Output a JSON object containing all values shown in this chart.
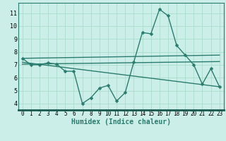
{
  "line1_x": [
    0,
    1,
    2,
    3,
    4,
    5,
    6,
    7,
    8,
    9,
    10,
    11,
    12,
    13,
    14,
    15,
    16,
    17,
    18,
    19,
    20,
    21,
    22,
    23
  ],
  "line1_y": [
    7.5,
    7.0,
    7.0,
    7.15,
    7.05,
    6.5,
    6.5,
    4.0,
    4.45,
    5.2,
    5.4,
    4.2,
    4.85,
    7.2,
    9.5,
    9.4,
    11.3,
    10.8,
    8.5,
    7.75,
    7.0,
    5.5,
    6.7,
    5.3
  ],
  "line2_x": [
    0,
    23
  ],
  "line2_y": [
    7.5,
    7.75
  ],
  "line3_x": [
    0,
    23
  ],
  "line3_y": [
    7.2,
    5.3
  ],
  "line4_x": [
    0,
    23
  ],
  "line4_y": [
    7.05,
    7.25
  ],
  "color": "#2a7d6e",
  "bg_color": "#cceee8",
  "grid_color": "#aaddcc",
  "xlabel": "Humidex (Indice chaleur)",
  "xlim": [
    -0.5,
    23.5
  ],
  "ylim": [
    3.5,
    11.8
  ],
  "yticks": [
    4,
    5,
    6,
    7,
    8,
    9,
    10,
    11
  ],
  "xticks": [
    0,
    1,
    2,
    3,
    4,
    5,
    6,
    7,
    8,
    9,
    10,
    11,
    12,
    13,
    14,
    15,
    16,
    17,
    18,
    19,
    20,
    21,
    22,
    23
  ],
  "marker": "D",
  "marker_size": 2.5,
  "linewidth": 1.0,
  "xlabel_fontsize": 7,
  "tick_fontsize": 5.5
}
